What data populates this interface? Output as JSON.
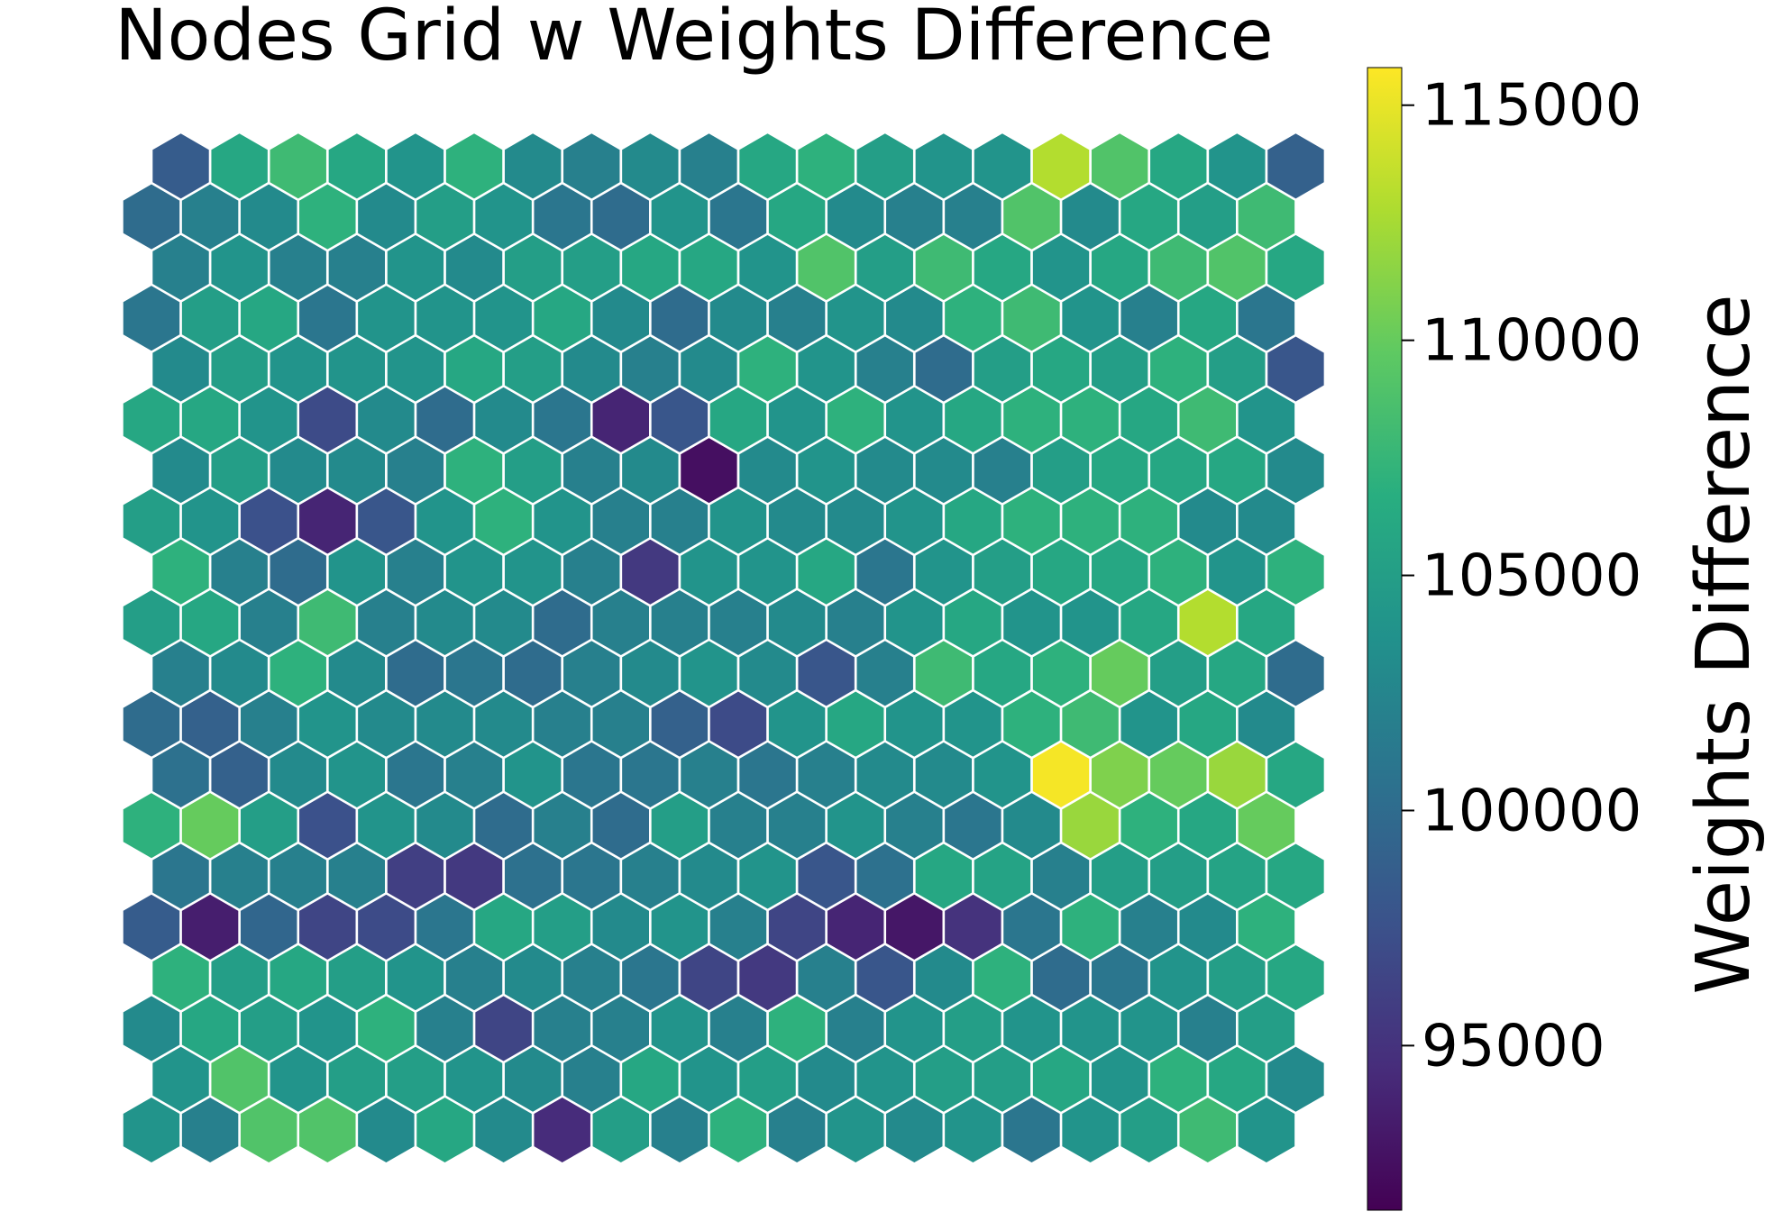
{
  "chart_data": {
    "type": "heatmap",
    "title": "Nodes Grid w Weights Difference",
    "colorbar": {
      "label": "Weights Difference",
      "min": 91500,
      "max": 115800,
      "ticks": [
        "95000",
        "100000",
        "105000",
        "110000",
        "115000"
      ],
      "colormap": "viridis"
    },
    "grid": {
      "layout": "hexagonal",
      "rows": 20,
      "cols": 20,
      "values": [
        [
          104000,
          102000,
          109000,
          109000,
          103000,
          106000,
          103000,
          94500,
          105000,
          102000,
          107000,
          102000,
          104000,
          103000,
          104000,
          101000,
          104000,
          105000,
          108000,
          104000
        ],
        [
          104000,
          109000,
          104000,
          105000,
          105000,
          104000,
          103000,
          102000,
          106000,
          104000,
          105000,
          103000,
          104000,
          105000,
          105000,
          106000,
          104000,
          107000,
          106000,
          103000
        ],
        [
          103000,
          106000,
          105000,
          104000,
          107000,
          102000,
          96500,
          102000,
          102000,
          104000,
          102000,
          107000,
          102000,
          104000,
          105000,
          104000,
          104000,
          104000,
          102000,
          105000
        ],
        [
          107000,
          105000,
          106000,
          105000,
          104000,
          102000,
          103000,
          102000,
          101000,
          96500,
          95500,
          102000,
          98000,
          103000,
          107000,
          100000,
          101000,
          104000,
          105000,
          106000
        ],
        [
          98500,
          93500,
          99500,
          96500,
          97000,
          101000,
          106000,
          105000,
          103000,
          104000,
          102000,
          96500,
          94000,
          93000,
          95000,
          101000,
          107000,
          102000,
          103000,
          107000
        ],
        [
          101000,
          102000,
          102000,
          102000,
          96000,
          95500,
          100500,
          101000,
          102000,
          103000,
          104000,
          98000,
          100500,
          106000,
          105500,
          102000,
          105000,
          105000,
          105500,
          106000
        ],
        [
          107000,
          110000,
          105000,
          97500,
          104000,
          103000,
          100000,
          102000,
          100000,
          105000,
          102000,
          102000,
          104000,
          102000,
          101000,
          103000,
          112000,
          107000,
          106000,
          110000
        ],
        [
          100500,
          99000,
          103000,
          104000,
          101000,
          102000,
          104000,
          101000,
          101000,
          102000,
          101000,
          102000,
          103000,
          103000,
          104000,
          115500,
          111000,
          110000,
          112000,
          106000
        ],
        [
          100000,
          99000,
          102000,
          104000,
          103000,
          103000,
          103000,
          102000,
          102000,
          99000,
          97000,
          104000,
          106000,
          104000,
          104000,
          107000,
          108000,
          104000,
          106000,
          103000
        ],
        [
          102000,
          103000,
          107000,
          103000,
          100000,
          101000,
          100000,
          102000,
          103000,
          104000,
          103000,
          98000,
          102000,
          108000,
          106000,
          107000,
          110000,
          105000,
          106000,
          100000
        ],
        [
          105000,
          106000,
          102000,
          108000,
          102000,
          103000,
          103000,
          100000,
          102000,
          102000,
          102000,
          103000,
          102000,
          104000,
          106000,
          104000,
          104000,
          106000,
          113000,
          106000
        ],
        [
          107000,
          102000,
          100000,
          104000,
          102000,
          104000,
          104000,
          102000,
          95500,
          104000,
          104000,
          106000,
          101000,
          104000,
          105000,
          106000,
          106000,
          107000,
          104000,
          107000
        ],
        [
          105000,
          104000,
          97500,
          94000,
          98000,
          104000,
          107000,
          104000,
          102000,
          102000,
          104000,
          103000,
          103000,
          104000,
          106000,
          107000,
          107000,
          107000,
          103000,
          103000
        ],
        [
          103000,
          105000,
          103000,
          103000,
          102000,
          107000,
          105000,
          102000,
          103000,
          92500,
          103000,
          104000,
          103000,
          103000,
          102000,
          105000,
          106000,
          106000,
          106000,
          103000
        ],
        [
          106000,
          106000,
          104000,
          97000,
          103000,
          100000,
          103000,
          101000,
          94000,
          98000,
          106000,
          104000,
          107000,
          104000,
          106000,
          107000,
          107000,
          106000,
          108000,
          104000
        ],
        [
          103000,
          105000,
          104000,
          104000,
          104000,
          106000,
          105000,
          103000,
          102000,
          103000,
          107000,
          104000,
          102000,
          100000,
          105000,
          106000,
          105000,
          107000,
          105000,
          98000
        ],
        [
          101000,
          105000,
          106000,
          101000,
          104000,
          104000,
          104000,
          106000,
          103000,
          100000,
          103000,
          102000,
          104000,
          103000,
          107000,
          108000,
          104000,
          102000,
          106000,
          101000
        ],
        [
          102000,
          104000,
          102000,
          102000,
          104000,
          103000,
          105000,
          105000,
          106000,
          106000,
          104000,
          109000,
          105000,
          108000,
          106000,
          104000,
          106000,
          108000,
          109000,
          106000
        ],
        [
          100000,
          102000,
          103000,
          107000,
          103000,
          105000,
          104000,
          101000,
          100000,
          104000,
          101000,
          106000,
          103000,
          102000,
          102000,
          109000,
          103000,
          106000,
          105000,
          108000
        ],
        [
          98500,
          106000,
          108000,
          106000,
          104000,
          107000,
          103000,
          102000,
          103000,
          102000,
          106000,
          107000,
          105000,
          104000,
          104000,
          113000,
          109000,
          106000,
          104000,
          99000
        ]
      ]
    }
  }
}
